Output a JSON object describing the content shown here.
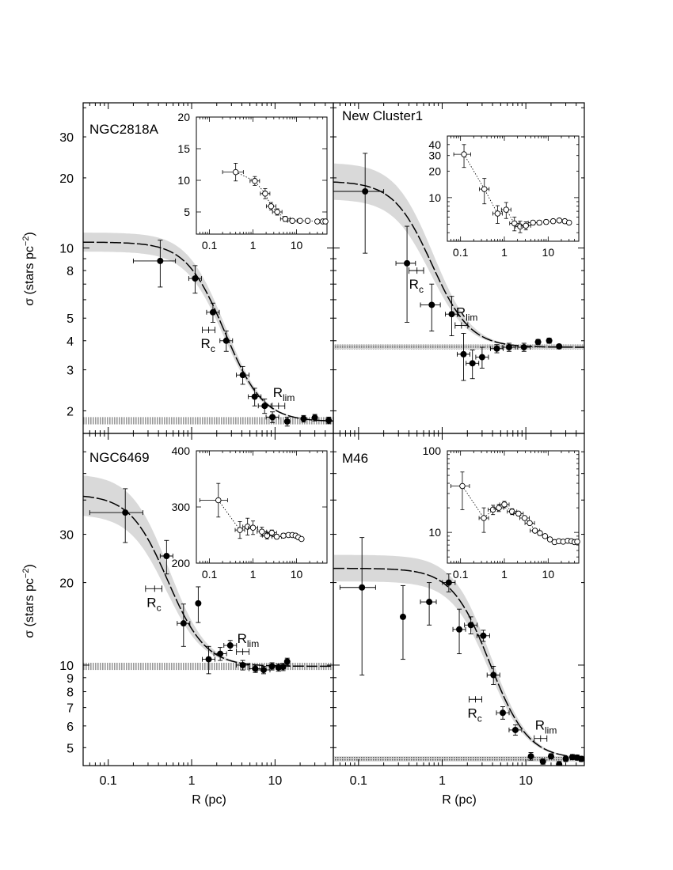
{
  "figure": {
    "ylabel_main": "σ",
    "ylabel_unit": "(stars pc",
    "ylabel_exp": "−2",
    "ylabel_close": ")",
    "xlabel": "R (pc)",
    "x_ticks": [
      0.1,
      1,
      10
    ]
  },
  "chart_data": [
    {
      "type": "scatter",
      "title": "NGC2818A",
      "x_scale": "log",
      "y_scale": "log",
      "xlim": [
        0.05,
        50
      ],
      "ylim": [
        1.6,
        42
      ],
      "y_ticks": [
        2,
        3,
        4,
        5,
        8,
        10,
        20,
        30
      ],
      "series": [
        {
          "values": [
            {
              "x": 0.42,
              "y": 8.8,
              "xerr": 0.22,
              "yerr": 2.0
            },
            {
              "x": 1.1,
              "y": 7.4,
              "xerr": 0.15,
              "yerr": 1.0
            },
            {
              "x": 1.8,
              "y": 5.3,
              "xerr": 0.2,
              "yerr": 0.5
            },
            {
              "x": 2.6,
              "y": 4.0,
              "xerr": 0.2,
              "yerr": 0.4
            },
            {
              "x": 4.1,
              "y": 2.85,
              "xerr": 0.3,
              "yerr": 0.25
            },
            {
              "x": 5.7,
              "y": 2.3,
              "xerr": 0.4,
              "yerr": 0.2
            },
            {
              "x": 7.5,
              "y": 2.1,
              "xerr": 0.5,
              "yerr": 0.15
            },
            {
              "x": 9.3,
              "y": 1.88,
              "xerr": 0.5,
              "yerr": 0.1
            },
            {
              "x": 14,
              "y": 1.8,
              "xerr": 0,
              "yerr": 0.08
            },
            {
              "x": 22,
              "y": 1.85,
              "xerr": 0,
              "yerr": 0.06
            },
            {
              "x": 30,
              "y": 1.87,
              "xerr": 0,
              "yerr": 0.06
            },
            {
              "x": 44,
              "y": 1.82,
              "xerr": 0,
              "yerr": 0.06
            }
          ]
        }
      ],
      "fit": {
        "sigma0": 8.8,
        "sigma_bg": 1.8,
        "rc": 1.6
      },
      "background_band": [
        1.75,
        1.88
      ],
      "fit_band_width": 1.12,
      "rc_marker": {
        "x": 1.6,
        "y": 4.45,
        "xerr": 0.2
      },
      "rlim_marker": {
        "x": 11,
        "y": 2.1,
        "xerr": 1.0
      },
      "rc_label": "R",
      "rc_sub": "c",
      "rlim_label": "R",
      "rlim_sub": "lim",
      "inset": {
        "x_scale": "log",
        "y_scale": "linear",
        "xlim": [
          0.05,
          50
        ],
        "ylim": [
          1.5,
          20
        ],
        "y_ticks": [
          5,
          10,
          15,
          20
        ],
        "points": [
          {
            "x": 0.4,
            "y": 11.3,
            "xerr": 0.2,
            "yerr": 1.4
          },
          {
            "x": 1.1,
            "y": 9.9,
            "xerr": 0.2,
            "yerr": 0.7
          },
          {
            "x": 1.9,
            "y": 7.9,
            "xerr": 0.25,
            "yerr": 0.8
          },
          {
            "x": 2.6,
            "y": 5.9,
            "xerr": 0.3,
            "yerr": 0.6
          },
          {
            "x": 3.6,
            "y": 5.0,
            "xerr": 0.3,
            "yerr": 0.5
          },
          {
            "x": 5.5,
            "y": 3.9,
            "xerr": 0.5,
            "yerr": 0.4
          },
          {
            "x": 8,
            "y": 3.6,
            "xerr": 0.6,
            "yerr": 0.3
          },
          {
            "x": 12,
            "y": 3.6,
            "xerr": 0,
            "yerr": 0.2
          },
          {
            "x": 18,
            "y": 3.6,
            "xerr": 0,
            "yerr": 0.2
          },
          {
            "x": 30,
            "y": 3.5,
            "xerr": 0,
            "yerr": 0.2
          },
          {
            "x": 40,
            "y": 3.5,
            "xerr": 0,
            "yerr": 0.2
          },
          {
            "x": 46,
            "y": 3.5,
            "xerr": 0,
            "yerr": 0.2
          }
        ]
      }
    },
    {
      "type": "scatter",
      "title": "New Cluster1",
      "x_scale": "log",
      "y_scale": "log",
      "xlim": [
        0.05,
        50
      ],
      "ylim": [
        1.6,
        42
      ],
      "y_ticks": [],
      "series": [
        {
          "values": [
            {
              "x": 0.12,
              "y": 17.5,
              "xerr": 0.08,
              "yerr": 8
            },
            {
              "x": 0.38,
              "y": 8.6,
              "xerr": 0.1,
              "yerr": 3.8
            },
            {
              "x": 0.75,
              "y": 5.7,
              "xerr": 0.2,
              "yerr": 1.3
            },
            {
              "x": 1.3,
              "y": 5.2,
              "xerr": 0.2,
              "yerr": 1.0
            },
            {
              "x": 1.8,
              "y": 3.5,
              "xerr": 0.2,
              "yerr": 0.8
            },
            {
              "x": 2.3,
              "y": 3.2,
              "xerr": 0.2,
              "yerr": 0.45
            },
            {
              "x": 3.0,
              "y": 3.4,
              "xerr": 0.25,
              "yerr": 0.35
            },
            {
              "x": 4.5,
              "y": 3.7,
              "xerr": 0.4,
              "yerr": 0.15
            },
            {
              "x": 6.3,
              "y": 3.75,
              "xerr": 0.5,
              "yerr": 0.15
            },
            {
              "x": 9.5,
              "y": 3.75,
              "xerr": 0.6,
              "yerr": 0.15
            },
            {
              "x": 14,
              "y": 3.95,
              "xerr": 0,
              "yerr": 0.1
            },
            {
              "x": 19,
              "y": 4.0,
              "xerr": 0,
              "yerr": 0.1
            },
            {
              "x": 25,
              "y": 3.78,
              "xerr": 0,
              "yerr": 0.08
            }
          ]
        }
      ],
      "fit": {
        "sigma0": 15.6,
        "sigma_bg": 3.75,
        "rc": 0.5
      },
      "background_band": [
        3.68,
        3.85
      ],
      "fit_band_width": 1.25,
      "rc_marker": {
        "x": 0.5,
        "y": 8.0,
        "xerr": 0.1
      },
      "rlim_marker": {
        "x": 1.7,
        "y": 4.65,
        "xerr": 0.15
      },
      "rc_label": "R",
      "rc_sub": "c",
      "rlim_label": "R",
      "rlim_sub": "lim",
      "inset": {
        "x_scale": "log",
        "y_scale": "log",
        "xlim": [
          0.05,
          50
        ],
        "ylim": [
          3.2,
          50
        ],
        "y_ticks": [
          10,
          20,
          30,
          40
        ],
        "points": [
          {
            "x": 0.12,
            "y": 31,
            "xerr": 0.05,
            "yerr": 9
          },
          {
            "x": 0.35,
            "y": 12.5,
            "xerr": 0.08,
            "yerr": 4
          },
          {
            "x": 0.7,
            "y": 6.6,
            "xerr": 0.15,
            "yerr": 1.5
          },
          {
            "x": 1.1,
            "y": 7.3,
            "xerr": 0.15,
            "yerr": 1.5
          },
          {
            "x": 1.7,
            "y": 5.1,
            "xerr": 0.2,
            "yerr": 0.9
          },
          {
            "x": 2.3,
            "y": 4.7,
            "xerr": 0.2,
            "yerr": 0.7
          },
          {
            "x": 3.1,
            "y": 4.8,
            "xerr": 0.3,
            "yerr": 0.5
          },
          {
            "x": 4.5,
            "y": 5.2,
            "xerr": 0.3,
            "yerr": 0.3
          },
          {
            "x": 6.3,
            "y": 5.2,
            "xerr": 0,
            "yerr": 0.3
          },
          {
            "x": 9,
            "y": 5.3,
            "xerr": 0,
            "yerr": 0.3
          },
          {
            "x": 13,
            "y": 5.4,
            "xerr": 0,
            "yerr": 0.2
          },
          {
            "x": 18,
            "y": 5.5,
            "xerr": 0,
            "yerr": 0.2
          },
          {
            "x": 24,
            "y": 5.4,
            "xerr": 0,
            "yerr": 0.2
          },
          {
            "x": 30,
            "y": 5.2,
            "xerr": 0,
            "yerr": 0.2
          }
        ]
      }
    },
    {
      "type": "scatter",
      "title": "NGC6469",
      "x_scale": "log",
      "y_scale": "log",
      "xlim": [
        0.05,
        50
      ],
      "ylim": [
        4.3,
        70
      ],
      "y_ticks": [
        5,
        6,
        7,
        8,
        9,
        10,
        20,
        30
      ],
      "series": [
        {
          "values": [
            {
              "x": 0.16,
              "y": 36,
              "xerr": 0.1,
              "yerr": 8
            },
            {
              "x": 0.5,
              "y": 25,
              "xerr": 0.08,
              "yerr": 3.5
            },
            {
              "x": 0.8,
              "y": 14.2,
              "xerr": 0.1,
              "yerr": 2.5
            },
            {
              "x": 1.2,
              "y": 16.8,
              "xerr": 0,
              "yerr": 2.5
            },
            {
              "x": 1.6,
              "y": 10.5,
              "xerr": 0.2,
              "yerr": 1.2
            },
            {
              "x": 2.2,
              "y": 11.0,
              "xerr": 0.2,
              "yerr": 0.6
            },
            {
              "x": 2.9,
              "y": 11.8,
              "xerr": 0.2,
              "yerr": 0.5
            },
            {
              "x": 4.1,
              "y": 10.0,
              "xerr": 0.4,
              "yerr": 0.4
            },
            {
              "x": 5.8,
              "y": 9.7,
              "xerr": 0.4,
              "yerr": 0.3
            },
            {
              "x": 7.3,
              "y": 9.6,
              "xerr": 0.5,
              "yerr": 0.3
            },
            {
              "x": 9.2,
              "y": 9.9,
              "xerr": 0,
              "yerr": 0.3
            },
            {
              "x": 11,
              "y": 9.8,
              "xerr": 0,
              "yerr": 0.3
            },
            {
              "x": 12.5,
              "y": 9.85,
              "xerr": 0,
              "yerr": 0.3
            },
            {
              "x": 14,
              "y": 10.3,
              "xerr": 0,
              "yerr": 0.3
            }
          ]
        }
      ],
      "fit": {
        "sigma0": 32,
        "sigma_bg": 9.9,
        "rc": 0.36
      },
      "background_band": [
        9.6,
        10.2
      ],
      "fit_band_width": 1.25,
      "rc_marker": {
        "x": 0.36,
        "y": 19,
        "xerr": 0.08
      },
      "rlim_marker": {
        "x": 4.1,
        "y": 11.2,
        "xerr": 0.4
      },
      "rc_label": "R",
      "rc_sub": "c",
      "rlim_label": "R",
      "rlim_sub": "lim",
      "inset": {
        "x_scale": "log",
        "y_scale": "linear",
        "xlim": [
          0.05,
          50
        ],
        "ylim": [
          200,
          400
        ],
        "y_ticks": [
          200,
          300,
          400
        ],
        "points": [
          {
            "x": 0.16,
            "y": 312,
            "xerr": 0.1,
            "yerr": 30
          },
          {
            "x": 0.5,
            "y": 259,
            "xerr": 0.1,
            "yerr": 15
          },
          {
            "x": 0.75,
            "y": 265,
            "xerr": 0.1,
            "yerr": 15
          },
          {
            "x": 1.0,
            "y": 263,
            "xerr": 0.1,
            "yerr": 12
          },
          {
            "x": 1.6,
            "y": 256,
            "xerr": 0.15,
            "yerr": 8
          },
          {
            "x": 2.1,
            "y": 249,
            "xerr": 0.2,
            "yerr": 6
          },
          {
            "x": 2.7,
            "y": 254,
            "xerr": 0.2,
            "yerr": 5
          },
          {
            "x": 3.5,
            "y": 247,
            "xerr": 0.3,
            "yerr": 4
          },
          {
            "x": 5,
            "y": 249,
            "xerr": 0,
            "yerr": 4
          },
          {
            "x": 6.5,
            "y": 250,
            "xerr": 0,
            "yerr": 3
          },
          {
            "x": 8,
            "y": 250,
            "xerr": 0,
            "yerr": 3
          },
          {
            "x": 9.5,
            "y": 249,
            "xerr": 0,
            "yerr": 3
          },
          {
            "x": 11,
            "y": 246,
            "xerr": 0,
            "yerr": 3
          },
          {
            "x": 13,
            "y": 243,
            "xerr": 0,
            "yerr": 3
          }
        ]
      }
    },
    {
      "type": "scatter",
      "title": "M46",
      "x_scale": "log",
      "y_scale": "log",
      "xlim": [
        0.05,
        50
      ],
      "ylim": [
        4.3,
        70
      ],
      "y_ticks": [],
      "series": [
        {
          "values": [
            {
              "x": 0.11,
              "y": 19.2,
              "xerr": 0.05,
              "yerr": 10
            },
            {
              "x": 0.34,
              "y": 15.0,
              "xerr": 0,
              "yerr": 4.5
            },
            {
              "x": 0.7,
              "y": 17.0,
              "xerr": 0.15,
              "yerr": 3
            },
            {
              "x": 1.2,
              "y": 20.0,
              "xerr": 0.15,
              "yerr": 1.5
            },
            {
              "x": 1.6,
              "y": 13.5,
              "xerr": 0.2,
              "yerr": 2.5
            },
            {
              "x": 2.2,
              "y": 14.0,
              "xerr": 0.2,
              "yerr": 1.0
            },
            {
              "x": 3.1,
              "y": 12.8,
              "xerr": 0.25,
              "yerr": 0.6
            },
            {
              "x": 4.1,
              "y": 9.2,
              "xerr": 0.35,
              "yerr": 0.7
            },
            {
              "x": 5.3,
              "y": 6.7,
              "xerr": 0.4,
              "yerr": 0.35
            },
            {
              "x": 7.5,
              "y": 5.8,
              "xerr": 0.5,
              "yerr": 0.25
            },
            {
              "x": 11.5,
              "y": 4.65,
              "xerr": 0,
              "yerr": 0.15
            },
            {
              "x": 16,
              "y": 4.45,
              "xerr": 0,
              "yerr": 0.1
            },
            {
              "x": 20,
              "y": 4.65,
              "xerr": 0,
              "yerr": 0.1
            },
            {
              "x": 25,
              "y": 4.35,
              "xerr": 0,
              "yerr": 0.1
            },
            {
              "x": 30,
              "y": 4.55,
              "xerr": 0,
              "yerr": 0.1
            },
            {
              "x": 36,
              "y": 4.62,
              "xerr": 0,
              "yerr": 0.1
            },
            {
              "x": 41,
              "y": 4.6,
              "xerr": 0,
              "yerr": 0.1
            },
            {
              "x": 46,
              "y": 4.55,
              "xerr": 0,
              "yerr": 0.1
            }
          ]
        }
      ],
      "fit": {
        "sigma0": 18,
        "sigma_bg": 4.55,
        "rc": 2.5
      },
      "background_band": [
        4.45,
        4.65
      ],
      "fit_band_width": 1.15,
      "rc_marker": {
        "x": 2.5,
        "y": 7.5,
        "xerr": 0.35
      },
      "rlim_marker": {
        "x": 15,
        "y": 5.4,
        "xerr": 1.2
      },
      "rc_label": "R",
      "rc_sub": "c",
      "rlim_label": "R",
      "rlim_sub": "lim",
      "inset": {
        "x_scale": "log",
        "y_scale": "log",
        "xlim": [
          0.05,
          50
        ],
        "ylim": [
          4.2,
          100
        ],
        "y_ticks": [
          10,
          100
        ],
        "points": [
          {
            "x": 0.11,
            "y": 37,
            "xerr": 0.05,
            "yerr": 18
          },
          {
            "x": 0.34,
            "y": 15,
            "xerr": 0.05,
            "yerr": 5
          },
          {
            "x": 0.55,
            "y": 19,
            "xerr": 0.1,
            "yerr": 2.5
          },
          {
            "x": 0.75,
            "y": 20,
            "xerr": 0.1,
            "yerr": 2
          },
          {
            "x": 1.0,
            "y": 22,
            "xerr": 0.12,
            "yerr": 2
          },
          {
            "x": 1.5,
            "y": 18,
            "xerr": 0.15,
            "yerr": 1.5
          },
          {
            "x": 2.1,
            "y": 17,
            "xerr": 0.2,
            "yerr": 1
          },
          {
            "x": 2.9,
            "y": 15,
            "xerr": 0.25,
            "yerr": 0.8
          },
          {
            "x": 3.8,
            "y": 13,
            "xerr": 0.3,
            "yerr": 0.6
          },
          {
            "x": 5,
            "y": 10.5,
            "xerr": 0.4,
            "yerr": 0.4
          },
          {
            "x": 6.5,
            "y": 9.8,
            "xerr": 0,
            "yerr": 0.4
          },
          {
            "x": 8.5,
            "y": 9.0,
            "xerr": 0,
            "yerr": 0.3
          },
          {
            "x": 11,
            "y": 8.2,
            "xerr": 0,
            "yerr": 0.3
          },
          {
            "x": 14,
            "y": 7.6,
            "xerr": 0,
            "yerr": 0.3
          },
          {
            "x": 17.5,
            "y": 7.8,
            "xerr": 0,
            "yerr": 0.3
          },
          {
            "x": 22,
            "y": 7.7,
            "xerr": 0,
            "yerr": 0.3
          },
          {
            "x": 28,
            "y": 7.9,
            "xerr": 0,
            "yerr": 0.3
          },
          {
            "x": 34,
            "y": 7.8,
            "xerr": 0,
            "yerr": 0.3
          },
          {
            "x": 40,
            "y": 7.6,
            "xerr": 0,
            "yerr": 0.3
          },
          {
            "x": 46,
            "y": 7.7,
            "xerr": 0,
            "yerr": 0.3
          }
        ]
      }
    }
  ]
}
